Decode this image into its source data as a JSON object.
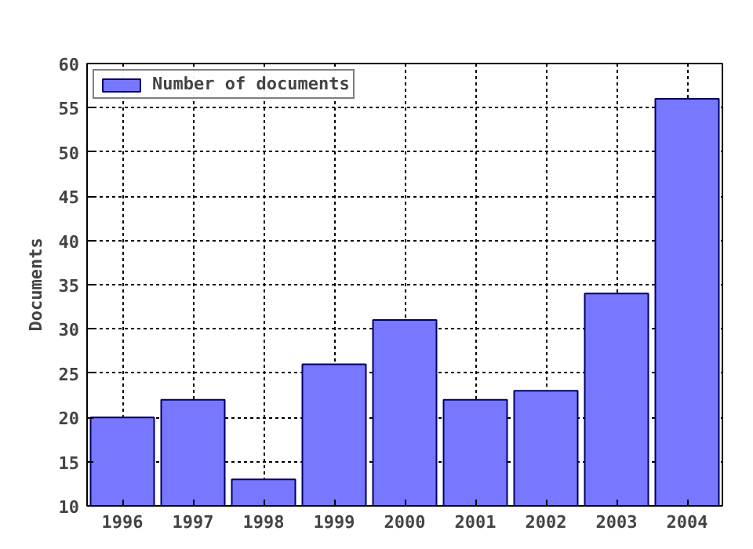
{
  "chart_data": {
    "type": "bar",
    "ylabel": "Documents",
    "x": [
      1996,
      1997,
      1998,
      1999,
      2000,
      2001,
      2002,
      2003,
      2004
    ],
    "series": [
      {
        "name": "Number of documents",
        "color": "#7777ff",
        "values": [
          20,
          22,
          13,
          26,
          31,
          22,
          23,
          34,
          56
        ]
      }
    ],
    "xlim": [
      1995.5,
      2004.5
    ],
    "xticks": [
      1996,
      1997,
      1998,
      1999,
      2000,
      2001,
      2002,
      2003,
      2004
    ],
    "ylim": [
      10,
      60
    ],
    "yticks": [
      10,
      15,
      20,
      25,
      30,
      35,
      40,
      45,
      50,
      55,
      60
    ],
    "grid": true,
    "legend": "top left"
  }
}
